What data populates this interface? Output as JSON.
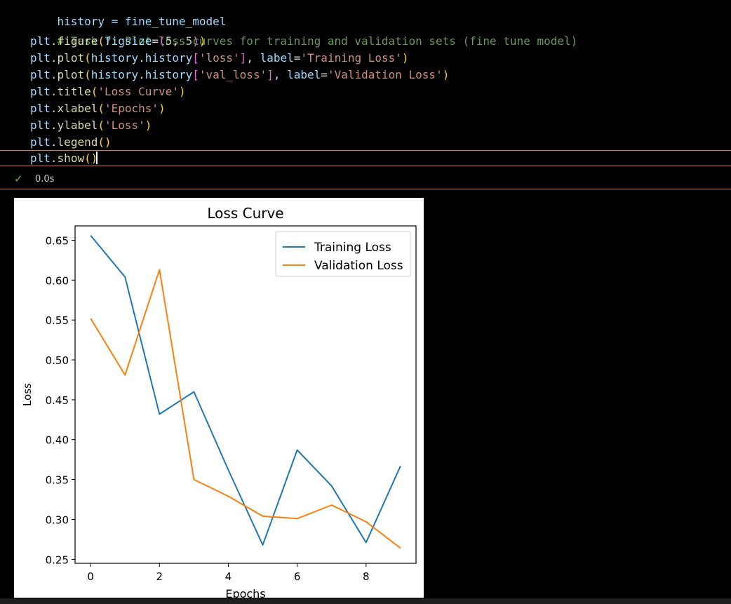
{
  "code": {
    "lines": [
      "history = fine_tune_model",
      "# Task 7: Plot loss curves for training and validation sets (fine tune model)",
      "plt.figure(figsize=(5, 5))",
      "plt.plot(history.history['loss'], label='Training Loss')",
      "plt.plot(history.history['val_loss'], label='Validation Loss')",
      "plt.title('Loss Curve')",
      "plt.xlabel('Epochs')",
      "plt.ylabel('Loss')",
      "plt.legend()",
      "plt.show()"
    ]
  },
  "status": {
    "check_icon": "checkmark-icon",
    "elapsed": "0.0s"
  },
  "chart_data": {
    "type": "line",
    "title": "Loss Curve",
    "xlabel": "Epochs",
    "ylabel": "Loss",
    "x": [
      0,
      1,
      2,
      3,
      4,
      5,
      6,
      7,
      8,
      9
    ],
    "xlim": [
      -0.45,
      9.45
    ],
    "ylim": [
      0.245,
      0.668
    ],
    "xticks": [
      0,
      2,
      4,
      6,
      8
    ],
    "yticks": [
      0.25,
      0.3,
      0.35,
      0.4,
      0.45,
      0.5,
      0.55,
      0.6,
      0.65
    ],
    "legend_position": "top-right",
    "grid": false,
    "series": [
      {
        "name": "Training Loss",
        "color": "#1f77b4",
        "values": [
          0.656,
          0.604,
          0.432,
          0.46,
          0.362,
          0.268,
          0.387,
          0.342,
          0.271,
          0.367
        ]
      },
      {
        "name": "Validation Loss",
        "color": "#ff7f0e",
        "values": [
          0.552,
          0.481,
          0.613,
          0.35,
          0.329,
          0.304,
          0.301,
          0.318,
          0.297,
          0.264
        ]
      }
    ]
  }
}
